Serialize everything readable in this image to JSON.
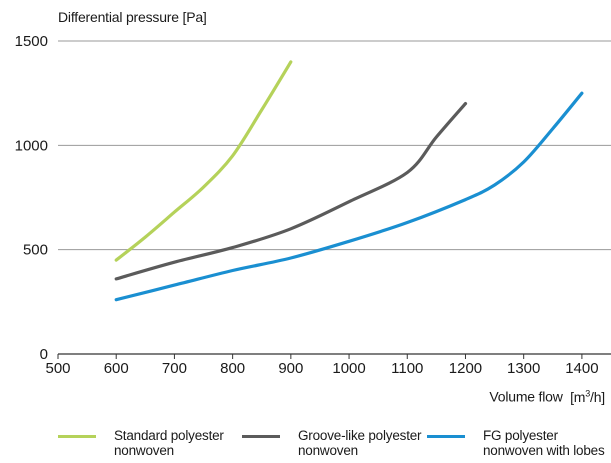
{
  "chart_data": {
    "type": "line",
    "ylabel": "Differential pressure [Pa]",
    "xlabel": "Volume flow",
    "xunit_pre": "[m",
    "xunit_sup": "3",
    "xunit_post": "/h]",
    "xlim": [
      500,
      1450
    ],
    "ylim": [
      0,
      1500
    ],
    "xticks": [
      500,
      600,
      700,
      800,
      900,
      1000,
      1100,
      1200,
      1300,
      1400
    ],
    "yticks": [
      0,
      500,
      1000,
      1500
    ],
    "grid": "horizontal",
    "legend_position": "bottom",
    "series": [
      {
        "name": "Standard polyester nonwoven",
        "name_lines": [
          "Standard polyester",
          "nonwoven"
        ],
        "color": "#b5d25a",
        "x": [
          600,
          650,
          700,
          750,
          800,
          850,
          900
        ],
        "y": [
          450,
          560,
          680,
          800,
          950,
          1170,
          1400
        ]
      },
      {
        "name": "Groove-like polyester nonwoven",
        "name_lines": [
          "Groove-like polyester",
          "nonwoven"
        ],
        "color": "#5b5b5b",
        "x": [
          600,
          700,
          800,
          900,
          1000,
          1100,
          1150,
          1200
        ],
        "y": [
          360,
          440,
          510,
          600,
          730,
          870,
          1040,
          1200
        ]
      },
      {
        "name": "FG polyester nonwoven with lobes",
        "name_lines": [
          "FG  polyester",
          "nonwoven with lobes"
        ],
        "color": "#1a8fd1",
        "x": [
          600,
          700,
          800,
          900,
          1000,
          1100,
          1200,
          1250,
          1300,
          1350,
          1400
        ],
        "y": [
          260,
          330,
          400,
          460,
          540,
          630,
          740,
          810,
          920,
          1080,
          1250
        ]
      }
    ]
  }
}
